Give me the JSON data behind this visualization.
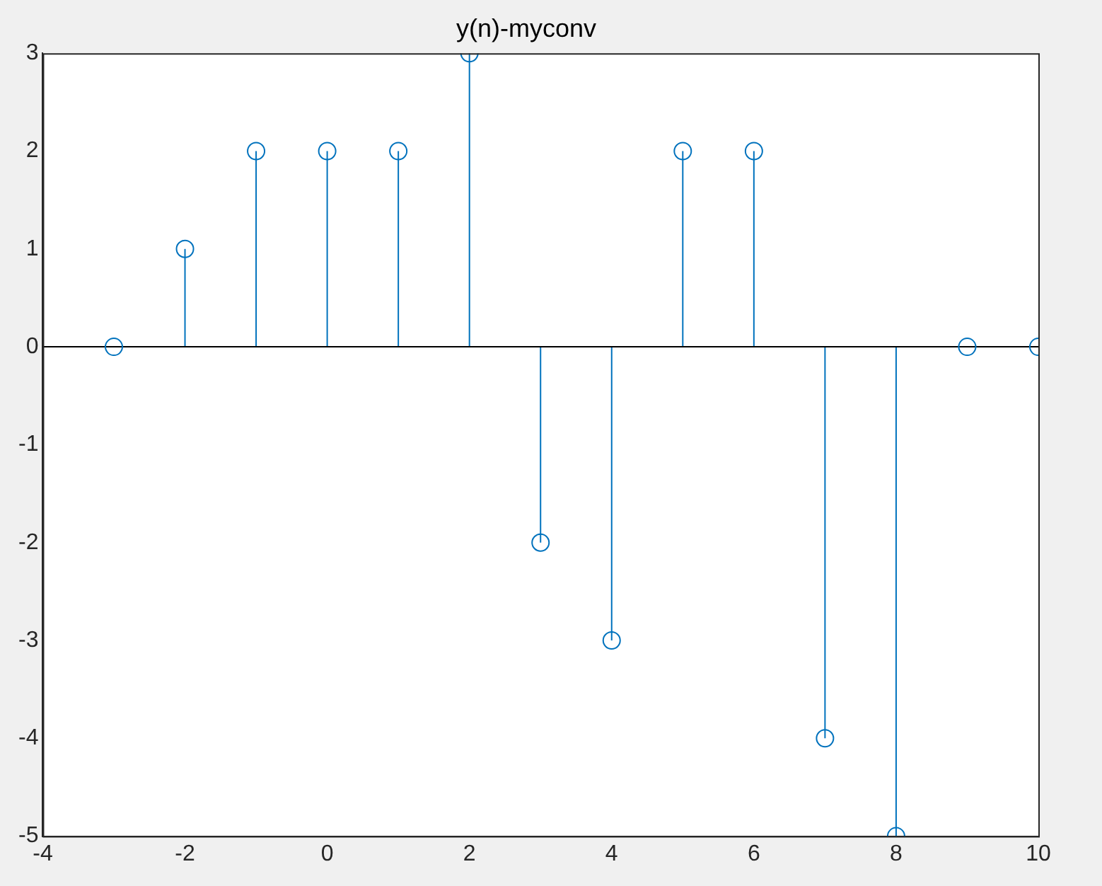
{
  "chart_data": {
    "type": "lollipop",
    "title": "y(n)-myconv",
    "x": [
      -3,
      -2,
      -1,
      0,
      1,
      2,
      3,
      4,
      5,
      6,
      7,
      8,
      9,
      10
    ],
    "values": [
      0,
      1,
      2,
      2,
      2,
      3,
      -2,
      -3,
      2,
      2,
      -4,
      -5,
      0,
      0
    ],
    "color": "#0072bd",
    "marker": "circle",
    "xlim": [
      -4,
      10
    ],
    "xticks": [
      -4,
      -2,
      0,
      2,
      4,
      6,
      8,
      10
    ],
    "ylim": [
      -5,
      3
    ],
    "yticks": [
      -5,
      -4,
      -3,
      -2,
      -1,
      0,
      1,
      2,
      3
    ]
  }
}
